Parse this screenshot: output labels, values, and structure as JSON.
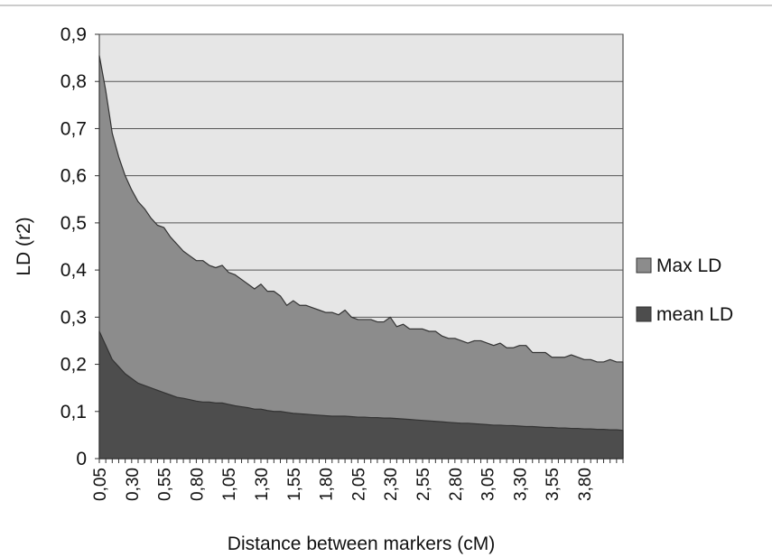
{
  "chart_data": {
    "type": "area",
    "title": "",
    "xlabel": "Distance between markers (cM)",
    "ylabel": "LD (r2)",
    "ylim": [
      0,
      0.9
    ],
    "yticks": [
      "0",
      "0,1",
      "0,2",
      "0,3",
      "0,4",
      "0,5",
      "0,6",
      "0,7",
      "0,8",
      "0,9"
    ],
    "x_tick_labels": [
      "0,05",
      "0,30",
      "0,55",
      "0,80",
      "1,05",
      "1,30",
      "1,55",
      "1,80",
      "2,05",
      "2,30",
      "2,55",
      "2,80",
      "3,05",
      "3,30",
      "3,55",
      "3,80"
    ],
    "x_start": 0.05,
    "x_step": 0.05,
    "grid": true,
    "legend_position": "right",
    "series": [
      {
        "name": "Max LD",
        "color": "#8c8c8c",
        "values": [
          0.855,
          0.78,
          0.69,
          0.64,
          0.6,
          0.57,
          0.545,
          0.53,
          0.51,
          0.495,
          0.49,
          0.47,
          0.455,
          0.44,
          0.43,
          0.42,
          0.42,
          0.41,
          0.405,
          0.41,
          0.395,
          0.39,
          0.38,
          0.37,
          0.36,
          0.37,
          0.355,
          0.355,
          0.345,
          0.325,
          0.335,
          0.325,
          0.325,
          0.32,
          0.315,
          0.31,
          0.31,
          0.305,
          0.315,
          0.3,
          0.295,
          0.295,
          0.295,
          0.29,
          0.29,
          0.3,
          0.28,
          0.285,
          0.275,
          0.275,
          0.275,
          0.27,
          0.27,
          0.26,
          0.255,
          0.255,
          0.25,
          0.245,
          0.25,
          0.25,
          0.245,
          0.24,
          0.245,
          0.235,
          0.235,
          0.24,
          0.24,
          0.225,
          0.225,
          0.225,
          0.215,
          0.215,
          0.215,
          0.22,
          0.215,
          0.21,
          0.21,
          0.205,
          0.205,
          0.21,
          0.205,
          0.205
        ]
      },
      {
        "name": "mean LD",
        "color": "#4d4d4d",
        "values": [
          0.27,
          0.24,
          0.21,
          0.195,
          0.18,
          0.17,
          0.16,
          0.155,
          0.15,
          0.145,
          0.14,
          0.135,
          0.13,
          0.128,
          0.125,
          0.122,
          0.12,
          0.12,
          0.118,
          0.118,
          0.115,
          0.112,
          0.11,
          0.108,
          0.105,
          0.105,
          0.102,
          0.1,
          0.1,
          0.098,
          0.096,
          0.095,
          0.094,
          0.093,
          0.092,
          0.091,
          0.09,
          0.09,
          0.09,
          0.089,
          0.088,
          0.088,
          0.087,
          0.087,
          0.086,
          0.086,
          0.085,
          0.084,
          0.083,
          0.082,
          0.081,
          0.08,
          0.079,
          0.078,
          0.077,
          0.076,
          0.075,
          0.075,
          0.074,
          0.073,
          0.072,
          0.071,
          0.071,
          0.07,
          0.07,
          0.069,
          0.068,
          0.068,
          0.067,
          0.066,
          0.066,
          0.065,
          0.065,
          0.064,
          0.064,
          0.063,
          0.063,
          0.062,
          0.062,
          0.061,
          0.061,
          0.06
        ]
      }
    ]
  }
}
